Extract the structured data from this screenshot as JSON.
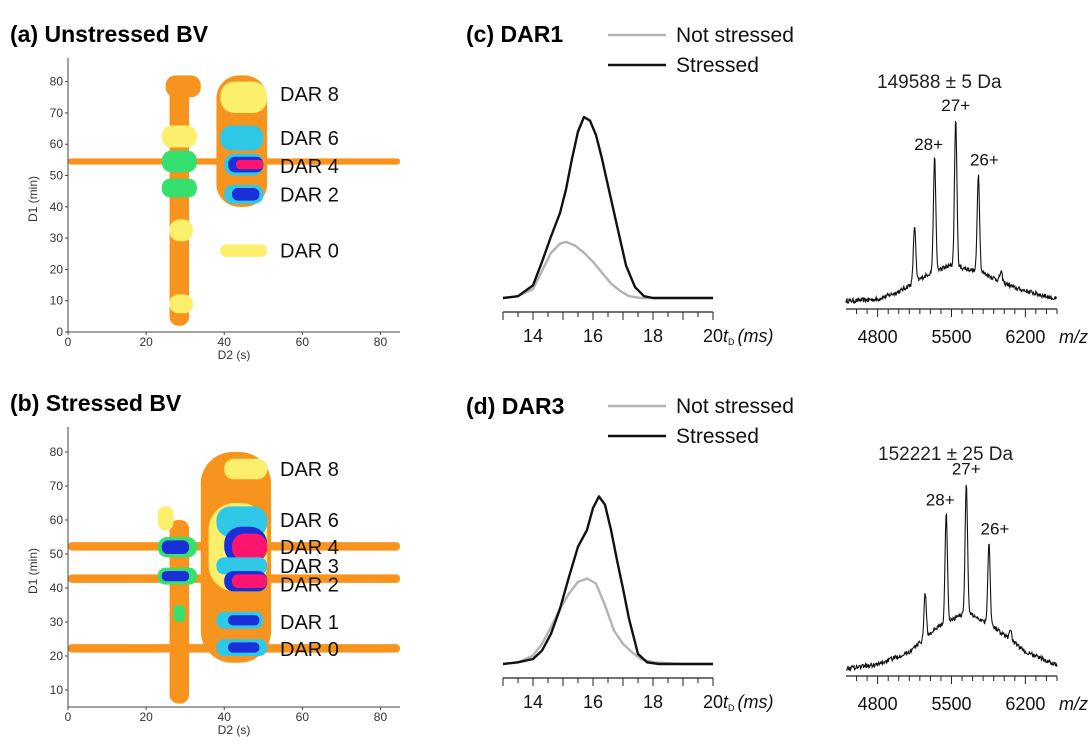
{
  "chart_data": [
    {
      "id": "a",
      "type": "heatmap",
      "title": "(a) Unstressed BV",
      "xlabel": "D2 (s)",
      "ylabel": "D1 (min)",
      "xlim": [
        0,
        85
      ],
      "ylim": [
        0,
        85
      ],
      "xticks": [
        0,
        20,
        40,
        60,
        80
      ],
      "yticks": [
        0,
        10,
        20,
        30,
        40,
        50,
        60,
        70,
        80
      ],
      "colors": {
        "low": "#f7941d",
        "mid1": "#fcef6c",
        "mid2": "#35e06e",
        "mid3": "#2fc8e6",
        "high1": "#1a2fd8",
        "high2": "#ff1470"
      },
      "labels": [
        {
          "text": "DAR 8",
          "y": 76
        },
        {
          "text": "DAR 6",
          "y": 62
        },
        {
          "text": "DAR 4",
          "y": 53
        },
        {
          "text": "DAR 2",
          "y": 44
        },
        {
          "text": "DAR 0",
          "y": 26
        }
      ],
      "blobs": [
        {
          "x": [
            0,
            85
          ],
          "y": [
            53.5,
            55.5
          ],
          "level": 0
        },
        {
          "x": [
            26,
            31
          ],
          "y": [
            2,
            80
          ],
          "level": 0
        },
        {
          "x": [
            25,
            34
          ],
          "y": [
            75,
            82
          ],
          "level": 0
        },
        {
          "x": [
            38,
            51
          ],
          "y": [
            40,
            82
          ],
          "level": 0
        },
        {
          "x": [
            39,
            51
          ],
          "y": [
            70,
            80
          ],
          "level": 1
        },
        {
          "x": [
            24,
            33
          ],
          "y": [
            59,
            66
          ],
          "level": 1
        },
        {
          "x": [
            24,
            33
          ],
          "y": [
            51,
            58
          ],
          "level": 2
        },
        {
          "x": [
            24,
            33
          ],
          "y": [
            43,
            49
          ],
          "level": 2
        },
        {
          "x": [
            26,
            32
          ],
          "y": [
            29,
            36
          ],
          "level": 1
        },
        {
          "x": [
            26,
            32
          ],
          "y": [
            6,
            12
          ],
          "level": 1
        },
        {
          "x": [
            39,
            50
          ],
          "y": [
            58,
            66
          ],
          "level": 3
        },
        {
          "x": [
            40,
            50
          ],
          "y": [
            50,
            57
          ],
          "level": 3
        },
        {
          "x": [
            41,
            50
          ],
          "y": [
            51,
            56
          ],
          "level": 4
        },
        {
          "x": [
            43,
            50
          ],
          "y": [
            52,
            55
          ],
          "level": 5
        },
        {
          "x": [
            40,
            50
          ],
          "y": [
            41,
            47
          ],
          "level": 3
        },
        {
          "x": [
            42,
            49
          ],
          "y": [
            42,
            46
          ],
          "level": 4
        },
        {
          "x": [
            39,
            51
          ],
          "y": [
            24,
            28
          ],
          "level": 1
        }
      ]
    },
    {
      "id": "b",
      "type": "heatmap",
      "title": "(b) Stressed BV",
      "xlabel": "D2 (s)",
      "ylabel": "D1 (min)",
      "xlim": [
        0,
        85
      ],
      "ylim": [
        5,
        85
      ],
      "xticks": [
        0,
        20,
        40,
        60,
        80
      ],
      "yticks": [
        10,
        20,
        30,
        40,
        50,
        60,
        70,
        80
      ],
      "labels": [
        {
          "text": "DAR 8",
          "y": 75
        },
        {
          "text": "DAR 6",
          "y": 60
        },
        {
          "text": "DAR 4",
          "y": 52
        },
        {
          "text": "DAR 3",
          "y": 46.5
        },
        {
          "text": "DAR 2",
          "y": 41
        },
        {
          "text": "DAR 1",
          "y": 30
        },
        {
          "text": "DAR 0",
          "y": 22
        }
      ],
      "blobs": [
        {
          "x": [
            0,
            85
          ],
          "y": [
            51,
            53.5
          ],
          "level": 0
        },
        {
          "x": [
            0,
            85
          ],
          "y": [
            41.5,
            44
          ],
          "level": 0
        },
        {
          "x": [
            0,
            85
          ],
          "y": [
            21,
            23.5
          ],
          "level": 0
        },
        {
          "x": [
            26,
            31
          ],
          "y": [
            6,
            60
          ],
          "level": 0
        },
        {
          "x": [
            34,
            52
          ],
          "y": [
            18,
            80
          ],
          "level": 0
        },
        {
          "x": [
            40,
            51
          ],
          "y": [
            72,
            78
          ],
          "level": 1
        },
        {
          "x": [
            23,
            27
          ],
          "y": [
            57,
            64
          ],
          "level": 1
        },
        {
          "x": [
            23,
            33
          ],
          "y": [
            49,
            55
          ],
          "level": 2
        },
        {
          "x": [
            24,
            31
          ],
          "y": [
            50,
            54
          ],
          "level": 4
        },
        {
          "x": [
            23,
            33
          ],
          "y": [
            41,
            46
          ],
          "level": 2
        },
        {
          "x": [
            24,
            31
          ],
          "y": [
            42,
            45
          ],
          "level": 4
        },
        {
          "x": [
            36,
            51
          ],
          "y": [
            39,
            65
          ],
          "level": 1
        },
        {
          "x": [
            38,
            51
          ],
          "y": [
            55,
            64
          ],
          "level": 3
        },
        {
          "x": [
            40,
            51
          ],
          "y": [
            47,
            58
          ],
          "level": 4
        },
        {
          "x": [
            42,
            51
          ],
          "y": [
            48,
            56
          ],
          "level": 5
        },
        {
          "x": [
            38,
            51
          ],
          "y": [
            44,
            49
          ],
          "level": 3
        },
        {
          "x": [
            40,
            51
          ],
          "y": [
            39,
            45
          ],
          "level": 4
        },
        {
          "x": [
            42,
            51
          ],
          "y": [
            40,
            44
          ],
          "level": 5
        },
        {
          "x": [
            38,
            50
          ],
          "y": [
            28,
            33
          ],
          "level": 3
        },
        {
          "x": [
            41,
            49
          ],
          "y": [
            29,
            32
          ],
          "level": 4
        },
        {
          "x": [
            38,
            51
          ],
          "y": [
            20,
            25
          ],
          "level": 3
        },
        {
          "x": [
            41,
            49
          ],
          "y": [
            21,
            24
          ],
          "level": 4
        },
        {
          "x": [
            27,
            30
          ],
          "y": [
            30,
            35
          ],
          "level": 2
        }
      ]
    },
    {
      "id": "c",
      "type": "line",
      "title": "(c) DAR1",
      "xlabel": "t",
      "xlabel_sub": "D",
      "xlabel_unit": "(ms)",
      "xlim": [
        13,
        20
      ],
      "ylim": [
        0,
        1.05
      ],
      "xticks": [
        14,
        16,
        18,
        20
      ],
      "series": [
        {
          "name": "Not stressed",
          "color": "#b3b3b3",
          "width": 2.4,
          "x": [
            13,
            13.5,
            14,
            14.3,
            14.6,
            14.9,
            15.1,
            15.4,
            15.7,
            16.0,
            16.3,
            16.6,
            16.9,
            17.2,
            17.6,
            18.0,
            19.0,
            20.0
          ],
          "y": [
            0.0,
            0.01,
            0.05,
            0.15,
            0.25,
            0.3,
            0.31,
            0.29,
            0.25,
            0.2,
            0.14,
            0.08,
            0.04,
            0.01,
            0.0,
            0.0,
            0.0,
            0.0
          ]
        },
        {
          "name": "Stressed",
          "color": "#111111",
          "width": 2.4,
          "x": [
            13,
            13.5,
            14,
            14.3,
            14.6,
            14.9,
            15.1,
            15.3,
            15.5,
            15.7,
            15.9,
            16.1,
            16.3,
            16.5,
            16.8,
            17.1,
            17.4,
            17.7,
            18.0,
            19.0,
            20.0
          ],
          "y": [
            0.0,
            0.01,
            0.07,
            0.2,
            0.34,
            0.47,
            0.6,
            0.77,
            0.92,
            1.0,
            0.98,
            0.9,
            0.77,
            0.62,
            0.4,
            0.18,
            0.06,
            0.01,
            0.0,
            0.0,
            0.0
          ]
        }
      ]
    },
    {
      "id": "c_ms",
      "type": "line",
      "title": "149588 ± 5 Da",
      "xlabel": "m/z",
      "xlim": [
        4500,
        6500
      ],
      "ylim": [
        0,
        1.05
      ],
      "xticks": [
        4800,
        5500,
        6200
      ],
      "peaks": [
        {
          "label": "28+",
          "x": 5340,
          "height": 0.6
        },
        {
          "label": "27+",
          "x": 5540,
          "height": 0.78
        },
        {
          "label": "26+",
          "x": 5755,
          "height": 0.52
        },
        {
          "label": "",
          "x": 5150,
          "height": 0.3
        },
        {
          "label": "",
          "x": 5970,
          "height": 0.05
        }
      ],
      "baseline": [
        {
          "x": 4500,
          "y": 0.01
        },
        {
          "x": 4800,
          "y": 0.02
        },
        {
          "x": 5000,
          "y": 0.06
        },
        {
          "x": 5300,
          "y": 0.16
        },
        {
          "x": 5500,
          "y": 0.2
        },
        {
          "x": 5800,
          "y": 0.16
        },
        {
          "x": 6100,
          "y": 0.08
        },
        {
          "x": 6500,
          "y": 0.02
        }
      ]
    },
    {
      "id": "d",
      "type": "line",
      "title": "(d) DAR3",
      "xlabel": "t",
      "xlabel_sub": "D",
      "xlabel_unit": "(ms)",
      "xlim": [
        13,
        20
      ],
      "ylim": [
        0,
        1.05
      ],
      "xticks": [
        14,
        16,
        18,
        20
      ],
      "series": [
        {
          "name": "Not stressed",
          "color": "#b3b3b3",
          "width": 2.4,
          "x": [
            13,
            13.5,
            14,
            14.3,
            14.6,
            14.9,
            15.2,
            15.5,
            15.8,
            16.1,
            16.4,
            16.7,
            17.0,
            17.3,
            17.6,
            18.0,
            19.0,
            20.0
          ],
          "y": [
            0.0,
            0.01,
            0.05,
            0.12,
            0.22,
            0.33,
            0.42,
            0.49,
            0.51,
            0.48,
            0.35,
            0.2,
            0.12,
            0.07,
            0.03,
            0.01,
            0.0,
            0.0
          ]
        },
        {
          "name": "Stressed",
          "color": "#111111",
          "width": 2.4,
          "x": [
            13,
            13.5,
            14,
            14.3,
            14.6,
            14.9,
            15.2,
            15.5,
            15.8,
            16.0,
            16.2,
            16.4,
            16.6,
            16.8,
            17.0,
            17.2,
            17.5,
            17.8,
            18.2,
            19.0,
            20.0
          ],
          "y": [
            0.0,
            0.01,
            0.03,
            0.08,
            0.18,
            0.33,
            0.52,
            0.7,
            0.8,
            0.93,
            1.0,
            0.95,
            0.8,
            0.62,
            0.45,
            0.27,
            0.06,
            0.01,
            0.0,
            0.0,
            0.0
          ]
        }
      ]
    },
    {
      "id": "d_ms",
      "type": "line",
      "title": "152221 ± 25 Da",
      "xlabel": "m/z",
      "xlim": [
        4500,
        6500
      ],
      "ylim": [
        0,
        1.05
      ],
      "xticks": [
        4800,
        5500,
        6200
      ],
      "peaks": [
        {
          "label": "28+",
          "x": 5450,
          "height": 0.6
        },
        {
          "label": "27+",
          "x": 5640,
          "height": 0.72
        },
        {
          "label": "26+",
          "x": 5855,
          "height": 0.45
        },
        {
          "label": "",
          "x": 5250,
          "height": 0.25
        },
        {
          "label": "",
          "x": 6060,
          "height": 0.06
        }
      ],
      "baseline": [
        {
          "x": 4500,
          "y": 0.01
        },
        {
          "x": 4800,
          "y": 0.03
        },
        {
          "x": 5100,
          "y": 0.1
        },
        {
          "x": 5400,
          "y": 0.25
        },
        {
          "x": 5650,
          "y": 0.32
        },
        {
          "x": 5900,
          "y": 0.24
        },
        {
          "x": 6200,
          "y": 0.1
        },
        {
          "x": 6500,
          "y": 0.03
        }
      ]
    }
  ]
}
